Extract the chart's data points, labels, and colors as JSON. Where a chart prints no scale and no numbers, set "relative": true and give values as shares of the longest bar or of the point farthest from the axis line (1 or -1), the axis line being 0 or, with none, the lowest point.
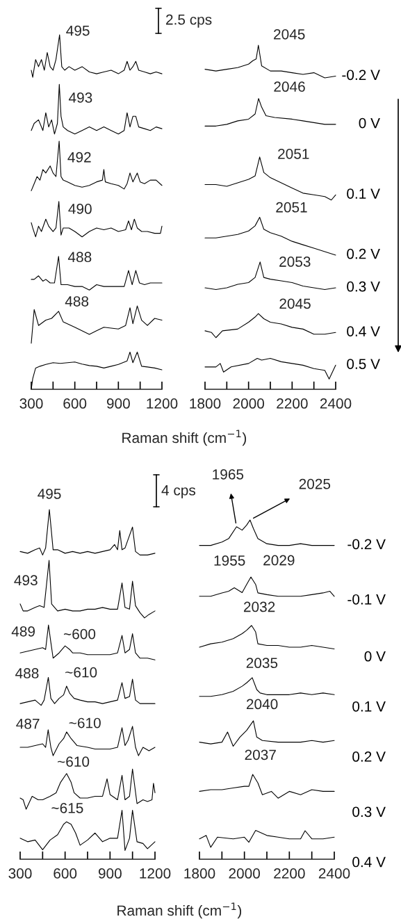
{
  "chart_data": [
    {
      "type": "line",
      "relative": true,
      "xlabel": "Raman shift (cm$^{−1}$)",
      "xlim": [
        300,
        1200
      ],
      "xticks": [
        300,
        {
          "value": 450,
          "label": null
        },
        600,
        {
          "value": 750,
          "label": null
        },
        900,
        {
          "value": 1050,
          "label": null
        },
        1200
      ],
      "annotations": [
        "2.5 cps",
        {
          "text": "495",
          "x": 495,
          "y": 1.0
        },
        {
          "text": "493",
          "x": 493,
          "y": 0.86
        },
        {
          "text": "492",
          "x": 492,
          "y": 0.7
        },
        {
          "text": "490",
          "x": 490,
          "y": 0.53
        },
        {
          "text": "488",
          "x": 488,
          "y": 0.375
        },
        {
          "text": "488",
          "x": 488,
          "y": 0.22
        }
      ],
      "series": [
        {
          "color": "#000000",
          "x": [
            300,
            310,
            330,
            350,
            370,
            390,
            410,
            430,
            450,
            470,
            495,
            510,
            530,
            560,
            600,
            650,
            700,
            750,
            800,
            850,
            900,
            940,
            960,
            980,
            1000,
            1020,
            1040,
            1080,
            1120,
            1160,
            1200
          ],
          "values": [
            0.9,
            0.88,
            0.93,
            0.91,
            0.93,
            0.9,
            0.95,
            0.91,
            0.9,
            0.93,
            1.0,
            0.91,
            0.9,
            0.91,
            0.9,
            0.91,
            0.895,
            0.89,
            0.895,
            0.9,
            0.89,
            0.9,
            0.925,
            0.9,
            0.91,
            0.925,
            0.9,
            0.895,
            0.89,
            0.895,
            0.89
          ]
        },
        {
          "color": "#000000",
          "x": [
            300,
            320,
            350,
            380,
            400,
            420,
            440,
            460,
            480,
            493,
            505,
            520,
            550,
            600,
            650,
            700,
            750,
            800,
            850,
            900,
            940,
            960,
            980,
            1000,
            1020,
            1040,
            1080,
            1120,
            1160,
            1200
          ],
          "values": [
            0.73,
            0.75,
            0.76,
            0.73,
            0.78,
            0.74,
            0.76,
            0.72,
            0.75,
            0.86,
            0.77,
            0.74,
            0.73,
            0.72,
            0.73,
            0.74,
            0.73,
            0.74,
            0.73,
            0.72,
            0.73,
            0.78,
            0.74,
            0.77,
            0.77,
            0.74,
            0.735,
            0.73,
            0.74,
            0.735
          ]
        },
        {
          "color": "#000000",
          "x": [
            300,
            320,
            340,
            360,
            380,
            400,
            430,
            450,
            470,
            492,
            505,
            520,
            550,
            600,
            650,
            700,
            750,
            790,
            800,
            810,
            850,
            900,
            940,
            960,
            980,
            1000,
            1030,
            1050,
            1080,
            1120,
            1160,
            1200
          ],
          "values": [
            0.56,
            0.58,
            0.6,
            0.59,
            0.62,
            0.61,
            0.63,
            0.61,
            0.6,
            0.7,
            0.6,
            0.59,
            0.585,
            0.575,
            0.57,
            0.575,
            0.585,
            0.59,
            0.62,
            0.585,
            0.58,
            0.575,
            0.565,
            0.58,
            0.61,
            0.585,
            0.61,
            0.585,
            0.58,
            0.59,
            0.59,
            0.575
          ]
        },
        {
          "color": "#000000",
          "x": [
            300,
            310,
            330,
            350,
            370,
            400,
            420,
            450,
            470,
            490,
            505,
            520,
            560,
            600,
            650,
            700,
            750,
            800,
            850,
            900,
            950,
            970,
            990,
            1010,
            1030,
            1060,
            1100,
            1150,
            1190,
            1200
          ],
          "values": [
            0.47,
            0.455,
            0.43,
            0.46,
            0.445,
            0.48,
            0.46,
            0.445,
            0.455,
            0.53,
            0.435,
            0.455,
            0.455,
            0.445,
            0.43,
            0.445,
            0.455,
            0.45,
            0.455,
            0.445,
            0.45,
            0.475,
            0.45,
            0.48,
            0.455,
            0.445,
            0.445,
            0.44,
            0.44,
            0.46
          ]
        },
        {
          "color": "#000000",
          "x": [
            300,
            320,
            350,
            380,
            400,
            430,
            460,
            488,
            505,
            550,
            600,
            650,
            700,
            750,
            800,
            850,
            900,
            940,
            970,
            995,
            1020,
            1045,
            1080,
            1120,
            1160,
            1200
          ],
          "values": [
            0.31,
            0.31,
            0.32,
            0.305,
            0.31,
            0.3,
            0.3,
            0.375,
            0.295,
            0.295,
            0.29,
            0.29,
            0.28,
            0.295,
            0.29,
            0.29,
            0.29,
            0.29,
            0.335,
            0.295,
            0.335,
            0.3,
            0.295,
            0.3,
            0.3,
            0.3
          ]
        },
        {
          "color": "#000000",
          "x": [
            300,
            320,
            350,
            400,
            440,
            488,
            520,
            600,
            700,
            750,
            800,
            900,
            950,
            980,
            1000,
            1030,
            1060,
            1100,
            1150,
            1200
          ],
          "values": [
            0.13,
            0.225,
            0.18,
            0.195,
            0.2,
            0.22,
            0.19,
            0.175,
            0.155,
            0.165,
            0.175,
            0.17,
            0.18,
            0.23,
            0.185,
            0.235,
            0.195,
            0.18,
            0.2,
            0.195
          ]
        },
        {
          "color": "#000000",
          "x": [
            300,
            310,
            330,
            360,
            400,
            450,
            500,
            550,
            600,
            650,
            700,
            750,
            800,
            850,
            900,
            960,
            980,
            1000,
            1030,
            1060,
            1100,
            1150,
            1200
          ],
          "values": [
            0.0,
            0.03,
            0.06,
            0.065,
            0.07,
            0.075,
            0.073,
            0.075,
            0.077,
            0.071,
            0.067,
            0.065,
            0.06,
            0.065,
            0.07,
            0.08,
            0.105,
            0.075,
            0.105,
            0.065,
            0.063,
            0.06,
            0.055
          ]
        }
      ]
    },
    {
      "type": "line",
      "relative": true,
      "xlim": [
        1800,
        2400
      ],
      "xticks": [
        1800,
        {
          "value": 1900,
          "label": null
        },
        2000,
        {
          "value": 2100,
          "label": null
        },
        2200,
        {
          "value": 2300,
          "label": null
        },
        2400
      ],
      "annotations": [
        {
          "text": "2045",
          "x": 2045,
          "y": 1.0
        },
        {
          "text": "2046",
          "x": 2046,
          "y": 0.845
        },
        {
          "text": "2051",
          "x": 2051,
          "y": 0.675
        },
        {
          "text": "2051",
          "x": 2051,
          "y": 0.5
        },
        {
          "text": "2053",
          "x": 2053,
          "y": 0.37
        },
        {
          "text": "2045",
          "x": 2045,
          "y": 0.22
        }
      ],
      "series": [
        {
          "name": "-0.2 V",
          "color": "#000000",
          "x": [
            1800,
            1850,
            1900,
            1950,
            2000,
            2020,
            2035,
            2045,
            2060,
            2100,
            2150,
            2200,
            2250,
            2300,
            2350,
            2400
          ],
          "values": [
            0.93,
            0.925,
            0.93,
            0.935,
            0.945,
            0.955,
            0.96,
            1.0,
            0.94,
            0.925,
            0.925,
            0.92,
            0.915,
            0.92,
            0.905,
            0.91
          ]
        },
        {
          "name": "0 V",
          "color": "#000000",
          "x": [
            1800,
            1850,
            1900,
            1950,
            2000,
            2030,
            2046,
            2060,
            2080,
            2120,
            2200,
            2250,
            2300,
            2350,
            2400
          ],
          "values": [
            0.765,
            0.765,
            0.77,
            0.78,
            0.785,
            0.8,
            0.845,
            0.82,
            0.795,
            0.79,
            0.785,
            0.78,
            0.775,
            0.77,
            0.77
          ]
        },
        {
          "name": "0.1 V",
          "color": "#000000",
          "x": [
            1800,
            1850,
            1900,
            1950,
            2000,
            2030,
            2051,
            2070,
            2100,
            2150,
            2200,
            2250,
            2300,
            2350,
            2380,
            2400
          ],
          "values": [
            0.595,
            0.595,
            0.59,
            0.6,
            0.61,
            0.62,
            0.675,
            0.63,
            0.615,
            0.6,
            0.585,
            0.57,
            0.565,
            0.56,
            0.55,
            0.565
          ]
        },
        {
          "name": "0.2 V",
          "color": "#000000",
          "x": [
            1800,
            1850,
            1900,
            1950,
            2000,
            2030,
            2051,
            2070,
            2100,
            2150,
            2200,
            2250,
            2300,
            2350,
            2400
          ],
          "values": [
            0.44,
            0.44,
            0.445,
            0.45,
            0.46,
            0.475,
            0.5,
            0.465,
            0.455,
            0.445,
            0.43,
            0.42,
            0.41,
            0.4,
            0.39
          ]
        },
        {
          "name": "0.3 V",
          "color": "#000000",
          "x": [
            1800,
            1850,
            1900,
            1950,
            2000,
            2030,
            2053,
            2070,
            2100,
            2150,
            2200,
            2250,
            2300,
            2350,
            2400
          ],
          "values": [
            0.295,
            0.29,
            0.295,
            0.305,
            0.31,
            0.325,
            0.37,
            0.325,
            0.32,
            0.315,
            0.31,
            0.3,
            0.295,
            0.29,
            0.295
          ]
        },
        {
          "name": "0.4 V",
          "color": "#000000",
          "x": [
            1800,
            1830,
            1850,
            1880,
            1950,
            2000,
            2030,
            2045,
            2070,
            2100,
            2150,
            2200,
            2250,
            2300,
            2350,
            2400
          ],
          "values": [
            0.17,
            0.165,
            0.15,
            0.17,
            0.175,
            0.195,
            0.21,
            0.22,
            0.205,
            0.195,
            0.19,
            0.18,
            0.175,
            0.16,
            0.16,
            0.165
          ]
        },
        {
          "name": "0.5 V",
          "color": "#000000",
          "x": [
            1800,
            1850,
            1870,
            1885,
            1920,
            2000,
            2040,
            2060,
            2100,
            2150,
            2200,
            2250,
            2300,
            2350,
            2370,
            2400
          ],
          "values": [
            0.065,
            0.065,
            0.075,
            0.05,
            0.065,
            0.075,
            0.09,
            0.085,
            0.09,
            0.08,
            0.075,
            0.07,
            0.06,
            0.055,
            0.03,
            0.07
          ]
        }
      ]
    },
    {
      "type": "line",
      "relative": true,
      "xlabel": "Raman shift (cm$^{−1}$)",
      "xlim": [
        300,
        1200
      ],
      "xticks": [
        300,
        {
          "value": 450,
          "label": null
        },
        600,
        {
          "value": 750,
          "label": null
        },
        900,
        {
          "value": 1050,
          "label": null
        },
        1200
      ],
      "annotations": [
        "4 cps",
        {
          "text": "495",
          "x": 495,
          "y": 1.0
        },
        {
          "text": "493",
          "x": 493,
          "y": 0.855
        },
        {
          "text": "489",
          "x": 489,
          "y": 0.67
        },
        {
          "text": "~600",
          "x": 600,
          "y": 0.61
        },
        {
          "text": "488",
          "x": 488,
          "y": 0.52
        },
        {
          "text": "~610",
          "x": 610,
          "y": 0.495
        },
        {
          "text": "487",
          "x": 487,
          "y": 0.37
        },
        {
          "text": "~610",
          "x": 610,
          "y": 0.364
        },
        {
          "text": "~610",
          "x": 610,
          "y": 0.245
        },
        {
          "text": "~615",
          "x": 615,
          "y": 0.107
        }
      ],
      "series": [
        {
          "color": "#000000",
          "x": [
            300,
            350,
            400,
            430,
            450,
            470,
            495,
            520,
            550,
            600,
            650,
            700,
            750,
            800,
            850,
            900,
            930,
            950,
            965,
            980,
            1000,
            1050,
            1070,
            1100,
            1150,
            1200
          ],
          "values": [
            0.88,
            0.875,
            0.885,
            0.89,
            0.87,
            0.89,
            1.0,
            0.885,
            0.885,
            0.875,
            0.88,
            0.875,
            0.88,
            0.875,
            0.88,
            0.885,
            0.9,
            0.885,
            0.94,
            0.885,
            0.89,
            0.95,
            0.88,
            0.87,
            0.87,
            0.875
          ]
        },
        {
          "color": "#000000",
          "x": [
            300,
            320,
            350,
            400,
            430,
            460,
            493,
            510,
            550,
            600,
            650,
            700,
            750,
            800,
            850,
            900,
            950,
            980,
            1000,
            1030,
            1050,
            1070,
            1100,
            1130,
            1160,
            1200
          ],
          "values": [
            0.73,
            0.71,
            0.71,
            0.72,
            0.725,
            0.72,
            0.855,
            0.73,
            0.71,
            0.715,
            0.71,
            0.71,
            0.715,
            0.715,
            0.72,
            0.715,
            0.715,
            0.79,
            0.72,
            0.715,
            0.795,
            0.725,
            0.705,
            0.69,
            0.7,
            0.71
          ]
        },
        {
          "color": "#000000",
          "x": [
            300,
            350,
            400,
            450,
            470,
            489,
            505,
            520,
            560,
            600,
            630,
            650,
            700,
            750,
            800,
            850,
            900,
            950,
            980,
            1000,
            1030,
            1050,
            1070,
            1100,
            1150,
            1200
          ],
          "values": [
            0.59,
            0.595,
            0.6,
            0.605,
            0.6,
            0.67,
            0.62,
            0.575,
            0.59,
            0.61,
            0.6,
            0.59,
            0.59,
            0.585,
            0.585,
            0.585,
            0.585,
            0.59,
            0.64,
            0.59,
            0.6,
            0.645,
            0.59,
            0.575,
            0.575,
            0.57
          ]
        },
        {
          "color": "#000000",
          "x": [
            300,
            350,
            400,
            440,
            460,
            488,
            505,
            530,
            560,
            590,
            610,
            630,
            660,
            700,
            750,
            800,
            850,
            900,
            950,
            980,
            1000,
            1030,
            1050,
            1070,
            1100,
            1150,
            1200
          ],
          "values": [
            0.445,
            0.45,
            0.455,
            0.44,
            0.455,
            0.52,
            0.46,
            0.445,
            0.46,
            0.47,
            0.495,
            0.475,
            0.46,
            0.455,
            0.45,
            0.45,
            0.445,
            0.45,
            0.455,
            0.505,
            0.46,
            0.465,
            0.515,
            0.455,
            0.445,
            0.445,
            0.445
          ]
        },
        {
          "color": "#000000",
          "x": [
            300,
            350,
            400,
            450,
            470,
            487,
            505,
            520,
            560,
            590,
            610,
            640,
            680,
            750,
            800,
            850,
            900,
            950,
            980,
            1000,
            1020,
            1050,
            1070,
            1090,
            1120,
            1160,
            1200
          ],
          "values": [
            0.32,
            0.32,
            0.325,
            0.33,
            0.32,
            0.37,
            0.32,
            0.296,
            0.33,
            0.345,
            0.364,
            0.345,
            0.325,
            0.32,
            0.315,
            0.315,
            0.315,
            0.32,
            0.376,
            0.325,
            0.34,
            0.38,
            0.32,
            0.296,
            0.32,
            0.31,
            0.32
          ]
        },
        {
          "color": "#000000",
          "x": [
            300,
            320,
            340,
            380,
            420,
            450,
            500,
            540,
            570,
            610,
            640,
            660,
            700,
            750,
            800,
            850,
            880,
            900,
            950,
            980,
            1000,
            1030,
            1050,
            1080,
            1120,
            1150,
            1180,
            1190,
            1200
          ],
          "values": [
            0.175,
            0.17,
            0.143,
            0.18,
            0.17,
            0.17,
            0.18,
            0.19,
            0.22,
            0.245,
            0.22,
            0.19,
            0.175,
            0.175,
            0.18,
            0.18,
            0.23,
            0.185,
            0.17,
            0.24,
            0.17,
            0.18,
            0.258,
            0.159,
            0.17,
            0.165,
            0.17,
            0.217,
            0.19
          ]
        },
        {
          "color": "#000000",
          "x": [
            300,
            350,
            400,
            450,
            500,
            550,
            590,
            610,
            640,
            670,
            700,
            750,
            800,
            850,
            900,
            950,
            980,
            1000,
            1030,
            1050,
            1080,
            1120,
            1150,
            1200
          ],
          "values": [
            0.06,
            0.05,
            0.055,
            0.027,
            0.055,
            0.07,
            0.1,
            0.107,
            0.1,
            0.075,
            0.04,
            0.055,
            0.075,
            0.05,
            0.06,
            0.06,
            0.14,
            0.025,
            0.06,
            0.14,
            0.05,
            0.045,
            0.03,
            0.05
          ]
        }
      ]
    },
    {
      "type": "line",
      "relative": true,
      "xlim": [
        1800,
        2400
      ],
      "xticks": [
        1800,
        {
          "value": 1900,
          "label": null
        },
        2000,
        {
          "value": 2100,
          "label": null
        },
        2200,
        {
          "value": 2300,
          "label": null
        },
        2400
      ],
      "annotations": [
        {
          "text": "1965",
          "x": 1965,
          "y": 0.98
        },
        {
          "text": "2025",
          "x": 2025,
          "y": 1.0
        },
        {
          "text": "1955",
          "x": 1955,
          "y": 0.8
        },
        {
          "text": "2029",
          "x": 2029,
          "y": 0.832
        },
        {
          "text": "2032",
          "x": 2032,
          "y": 0.689
        },
        {
          "text": "2035",
          "x": 2035,
          "y": 0.535
        },
        {
          "text": "2040",
          "x": 2040,
          "y": 0.408
        },
        {
          "text": "2037",
          "x": 2037,
          "y": 0.25
        }
      ],
      "series": [
        {
          "name": "-0.2 V",
          "color": "#000000",
          "x": [
            1800,
            1850,
            1900,
            1930,
            1965,
            1990,
            2010,
            2025,
            2040,
            2060,
            2100,
            2150,
            2200,
            2250,
            2300,
            2350,
            2400
          ],
          "values": [
            0.925,
            0.925,
            0.935,
            0.945,
            0.98,
            0.97,
            0.985,
            1.0,
            0.975,
            0.945,
            0.93,
            0.925,
            0.925,
            0.93,
            0.925,
            0.925,
            0.925
          ]
        },
        {
          "name": "-0.1 V",
          "color": "#000000",
          "x": [
            1800,
            1850,
            1900,
            1930,
            1955,
            1990,
            2010,
            2029,
            2050,
            2060,
            2100,
            2150,
            2200,
            2250,
            2300,
            2350,
            2380,
            2400
          ],
          "values": [
            0.775,
            0.775,
            0.785,
            0.79,
            0.8,
            0.786,
            0.81,
            0.832,
            0.81,
            0.785,
            0.78,
            0.775,
            0.775,
            0.775,
            0.78,
            0.785,
            0.79,
            0.775
          ]
        },
        {
          "name": "0 V",
          "color": "#000000",
          "x": [
            1800,
            1850,
            1900,
            1950,
            1990,
            2010,
            2032,
            2050,
            2060,
            2100,
            2150,
            2200,
            2250,
            2300,
            2350,
            2400
          ],
          "values": [
            0.625,
            0.635,
            0.64,
            0.65,
            0.665,
            0.675,
            0.689,
            0.67,
            0.635,
            0.63,
            0.63,
            0.625,
            0.625,
            0.63,
            0.625,
            0.62
          ]
        },
        {
          "name": "0.1 V",
          "color": "#000000",
          "x": [
            1800,
            1850,
            1900,
            1950,
            1990,
            2010,
            2035,
            2055,
            2070,
            2100,
            2150,
            2200,
            2250,
            2300,
            2350,
            2400
          ],
          "values": [
            0.48,
            0.48,
            0.485,
            0.495,
            0.51,
            0.52,
            0.535,
            0.5,
            0.49,
            0.485,
            0.485,
            0.485,
            0.49,
            0.485,
            0.49,
            0.485
          ]
        },
        {
          "name": "0.2 V",
          "color": "#000000",
          "x": [
            1800,
            1850,
            1900,
            1925,
            1950,
            1980,
            2010,
            2040,
            2055,
            2080,
            2150,
            2200,
            2250,
            2300,
            2350,
            2400
          ],
          "values": [
            0.345,
            0.34,
            0.345,
            0.375,
            0.333,
            0.36,
            0.38,
            0.408,
            0.36,
            0.35,
            0.345,
            0.345,
            0.345,
            0.35,
            0.345,
            0.35
          ]
        },
        {
          "name": "0.3 V",
          "color": "#000000",
          "x": [
            1800,
            1850,
            1900,
            1950,
            2000,
            2020,
            2037,
            2060,
            2080,
            2120,
            2150,
            2200,
            2250,
            2300,
            2350,
            2400
          ],
          "values": [
            0.2,
            0.205,
            0.205,
            0.21,
            0.215,
            0.215,
            0.25,
            0.225,
            0.19,
            0.2,
            0.18,
            0.2,
            0.19,
            0.205,
            0.2,
            0.2
          ]
        },
        {
          "name": "0.4 V",
          "color": "#000000",
          "x": [
            1800,
            1830,
            1850,
            1880,
            1950,
            2000,
            2020,
            2050,
            2100,
            2150,
            2200,
            2250,
            2270,
            2300,
            2350,
            2400
          ],
          "values": [
            0.06,
            0.07,
            0.035,
            0.065,
            0.06,
            0.065,
            0.05,
            0.085,
            0.07,
            0.065,
            0.06,
            0.06,
            0.084,
            0.06,
            0.06,
            0.065
          ]
        }
      ]
    }
  ]
}
